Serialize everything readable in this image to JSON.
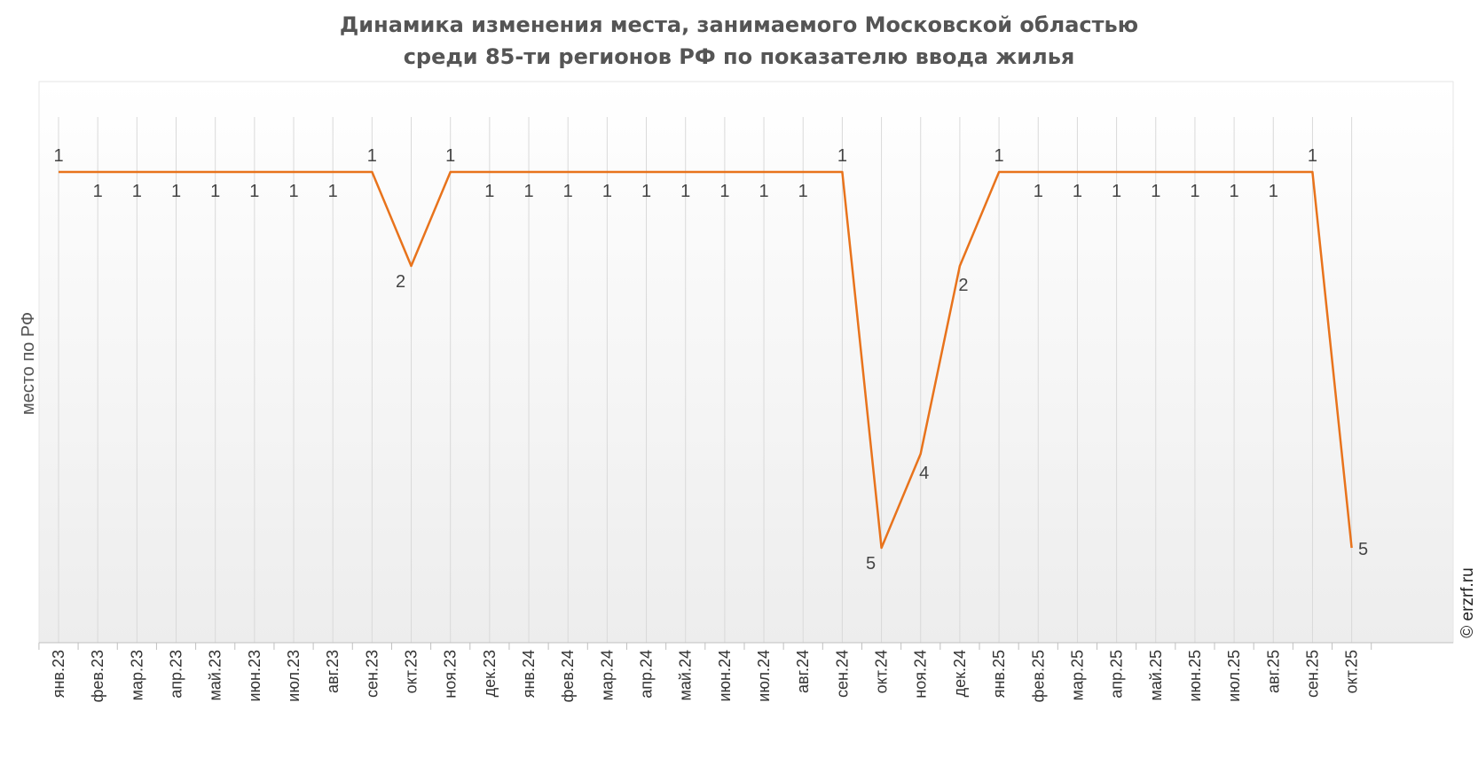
{
  "chart_data": {
    "type": "line",
    "title_line1": "Динамика изменения места, занимаемого Московской областью",
    "title_line2": "среди 85-ти регионов РФ по показателю ввода жилья",
    "ylabel": "место по РФ",
    "credit": "© erzrf.ru",
    "categories": [
      "янв.23",
      "фев.23",
      "мар.23",
      "апр.23",
      "май.23",
      "июн.23",
      "июл.23",
      "авг.23",
      "сен.23",
      "окт.23",
      "ноя.23",
      "дек.23",
      "янв.24",
      "фев.24",
      "мар.24",
      "апр.24",
      "май.24",
      "июн.24",
      "июл.24",
      "авг.24",
      "сен.24",
      "окт.24",
      "ноя.24",
      "дек.24",
      "янв.25",
      "фев.25",
      "мар.25",
      "апр.25",
      "май.25",
      "июн.25",
      "июл.25",
      "авг.25",
      "сен.25",
      "окт.25"
    ],
    "series": [
      {
        "values": [
          1,
          1,
          1,
          1,
          1,
          1,
          1,
          1,
          1,
          2,
          1,
          1,
          1,
          1,
          1,
          1,
          1,
          1,
          1,
          1,
          1,
          5,
          4,
          2,
          1,
          1,
          1,
          1,
          1,
          1,
          1,
          1,
          1,
          5
        ]
      }
    ],
    "y_inverted": true,
    "line_color": "#e8731c",
    "grid_color": "#d9d9d9"
  }
}
